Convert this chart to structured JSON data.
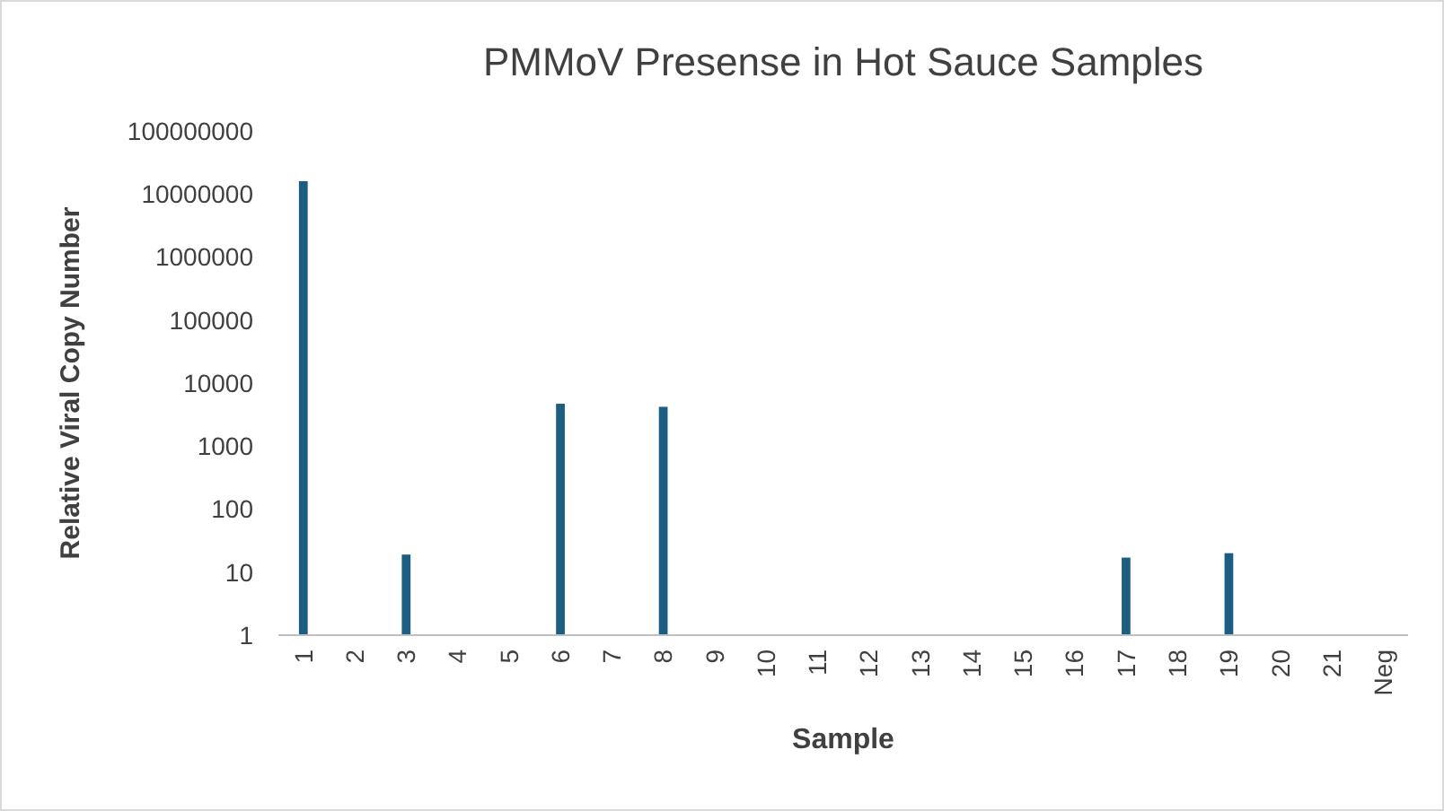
{
  "chart_data": {
    "type": "bar",
    "title": "PMMoV Presense in Hot Sauce Samples",
    "xlabel": "Sample",
    "ylabel": "Relative Viral Copy Number",
    "categories": [
      "1",
      "2",
      "3",
      "4",
      "5",
      "6",
      "7",
      "8",
      "9",
      "10",
      "11",
      "12",
      "13",
      "14",
      "15",
      "16",
      "17",
      "18",
      "19",
      "20",
      "21",
      "Neg"
    ],
    "values": [
      16000000,
      null,
      19,
      null,
      null,
      4700,
      null,
      4200,
      null,
      null,
      null,
      null,
      null,
      null,
      null,
      null,
      17,
      null,
      20,
      null,
      null,
      null
    ],
    "color": "#1b5e82",
    "log": true,
    "ylim": [
      1,
      100000000
    ],
    "yticks": [
      1,
      10,
      100,
      1000,
      10000,
      100000,
      1000000,
      10000000,
      100000000
    ],
    "grid": false
  }
}
